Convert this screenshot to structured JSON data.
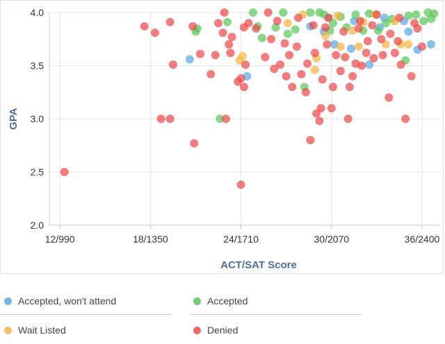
{
  "chart_data": {
    "type": "scatter",
    "title": "",
    "xlabel": "ACT/SAT Score",
    "ylabel": "GPA",
    "x_ticks": [
      {
        "value": 12,
        "label": "12/990"
      },
      {
        "value": 18,
        "label": "18/1350"
      },
      {
        "value": 24,
        "label": "24/1710"
      },
      {
        "value": 30,
        "label": "30/2070"
      },
      {
        "value": 36,
        "label": "36/2400"
      }
    ],
    "y_ticks": [
      2.0,
      2.5,
      3.0,
      3.5,
      4.0
    ],
    "xlim": [
      11.3,
      37.2
    ],
    "ylim": [
      2.0,
      4.0
    ],
    "grid": true,
    "legend_position": "bottom",
    "series": [
      {
        "name": "Accepted, won't attend",
        "color": "#5aa9e6",
        "points": [
          [
            20.6,
            3.56
          ],
          [
            24.4,
            3.4
          ],
          [
            28.6,
            3.87
          ],
          [
            29.5,
            3.82
          ],
          [
            30.2,
            3.7
          ],
          [
            31.3,
            3.66
          ],
          [
            32.5,
            3.51
          ],
          [
            33.2,
            3.86
          ],
          [
            35.1,
            3.82
          ],
          [
            35.7,
            3.65
          ],
          [
            36.6,
            3.7
          ],
          [
            29.8,
            3.95
          ],
          [
            31.5,
            3.92
          ],
          [
            33.5,
            3.95
          ],
          [
            34.8,
            3.92
          ]
        ]
      },
      {
        "name": "Accepted",
        "color": "#5cc85c",
        "points": [
          [
            21.0,
            3.82
          ],
          [
            21.1,
            3.85
          ],
          [
            22.6,
            3.0
          ],
          [
            23.1,
            3.91
          ],
          [
            24.8,
            4.0
          ],
          [
            25.1,
            3.87
          ],
          [
            25.4,
            3.76
          ],
          [
            26.3,
            3.86
          ],
          [
            27.1,
            3.8
          ],
          [
            27.6,
            3.84
          ],
          [
            28.2,
            3.3
          ],
          [
            29.5,
            3.98
          ],
          [
            30.1,
            3.9
          ],
          [
            31.6,
            3.98
          ],
          [
            32.5,
            3.99
          ],
          [
            33.1,
            3.83
          ],
          [
            34.0,
            3.94
          ],
          [
            34.9,
            3.55
          ],
          [
            35.6,
            3.98
          ],
          [
            36.1,
            3.92
          ],
          [
            36.6,
            3.94
          ],
          [
            36.8,
            3.99
          ],
          [
            26.8,
            4.0
          ],
          [
            28.6,
            4.0
          ],
          [
            29.9,
            3.83
          ],
          [
            31.0,
            3.86
          ],
          [
            32.1,
            3.83
          ],
          [
            33.6,
            3.9
          ],
          [
            35.1,
            3.97
          ],
          [
            36.4,
            4.0
          ],
          [
            30.6,
            3.96
          ],
          [
            29.2,
            4.0
          ]
        ]
      },
      {
        "name": "Wait Listed",
        "color": "#f5b642",
        "points": [
          [
            24.1,
            3.59
          ],
          [
            23.9,
            3.55
          ],
          [
            27.1,
            3.9
          ],
          [
            28.9,
            3.46
          ],
          [
            29.6,
            3.78
          ],
          [
            30.6,
            3.68
          ],
          [
            31.4,
            3.83
          ],
          [
            32.1,
            3.91
          ],
          [
            33.6,
            3.7
          ],
          [
            34.6,
            3.7
          ],
          [
            35.1,
            3.7
          ],
          [
            30.4,
            3.97
          ],
          [
            28.1,
            3.98
          ],
          [
            32.9,
            3.98
          ],
          [
            29.0,
            3.57
          ],
          [
            31.8,
            3.68
          ],
          [
            34.2,
            3.92
          ]
        ]
      },
      {
        "name": "Denied",
        "color": "#ef4a4a",
        "points": [
          [
            12.3,
            2.5
          ],
          [
            17.6,
            3.87
          ],
          [
            18.3,
            3.81
          ],
          [
            18.7,
            3.0
          ],
          [
            19.3,
            3.0
          ],
          [
            19.3,
            3.91
          ],
          [
            19.5,
            3.51
          ],
          [
            20.8,
            3.87
          ],
          [
            20.9,
            2.77
          ],
          [
            21.3,
            3.61
          ],
          [
            22.0,
            3.42
          ],
          [
            22.3,
            3.6
          ],
          [
            22.5,
            3.9
          ],
          [
            22.8,
            3.81
          ],
          [
            23.0,
            3.0
          ],
          [
            23.2,
            3.7
          ],
          [
            23.3,
            3.62
          ],
          [
            23.4,
            3.77
          ],
          [
            23.8,
            3.35
          ],
          [
            24.0,
            3.38
          ],
          [
            24.0,
            2.38
          ],
          [
            24.2,
            3.3
          ],
          [
            24.3,
            3.51
          ],
          [
            24.2,
            3.86
          ],
          [
            24.5,
            3.9
          ],
          [
            25.0,
            3.85
          ],
          [
            25.6,
            3.58
          ],
          [
            26.0,
            3.75
          ],
          [
            26.6,
            3.51
          ],
          [
            27.0,
            3.4
          ],
          [
            27.2,
            3.6
          ],
          [
            27.4,
            3.3
          ],
          [
            27.7,
            3.68
          ],
          [
            28.0,
            3.42
          ],
          [
            28.3,
            3.25
          ],
          [
            28.6,
            2.8
          ],
          [
            28.9,
            3.62
          ],
          [
            29.0,
            3.05
          ],
          [
            29.2,
            2.98
          ],
          [
            29.3,
            3.1
          ],
          [
            29.4,
            3.37
          ],
          [
            29.7,
            3.7
          ],
          [
            30.0,
            3.1
          ],
          [
            30.3,
            3.6
          ],
          [
            30.6,
            3.45
          ],
          [
            31.1,
            3.0
          ],
          [
            31.2,
            3.3
          ],
          [
            31.4,
            3.4
          ],
          [
            31.6,
            3.52
          ],
          [
            32.0,
            3.5
          ],
          [
            32.3,
            3.62
          ],
          [
            32.8,
            3.57
          ],
          [
            33.3,
            3.75
          ],
          [
            33.8,
            3.2
          ],
          [
            34.2,
            3.62
          ],
          [
            34.6,
            3.51
          ],
          [
            34.9,
            3.0
          ],
          [
            35.3,
            3.4
          ],
          [
            35.7,
            3.85
          ],
          [
            36.0,
            3.68
          ],
          [
            25.8,
            4.0
          ],
          [
            26.4,
            3.92
          ],
          [
            27.8,
            3.95
          ],
          [
            28.8,
            3.88
          ],
          [
            29.8,
            3.95
          ],
          [
            30.8,
            3.82
          ],
          [
            31.9,
            3.92
          ],
          [
            32.7,
            3.88
          ],
          [
            33.9,
            3.8
          ],
          [
            34.5,
            3.95
          ],
          [
            35.5,
            3.9
          ],
          [
            26.9,
            3.71
          ],
          [
            28.4,
            3.52
          ],
          [
            29.6,
            3.86
          ],
          [
            30.9,
            3.58
          ],
          [
            32.4,
            3.73
          ],
          [
            33.4,
            3.6
          ],
          [
            34.4,
            3.73
          ],
          [
            22.9,
            4.0
          ],
          [
            26.2,
            3.47
          ],
          [
            30.1,
            3.3
          ],
          [
            31.8,
            3.85
          ],
          [
            33.0,
            3.98
          ]
        ]
      }
    ]
  }
}
